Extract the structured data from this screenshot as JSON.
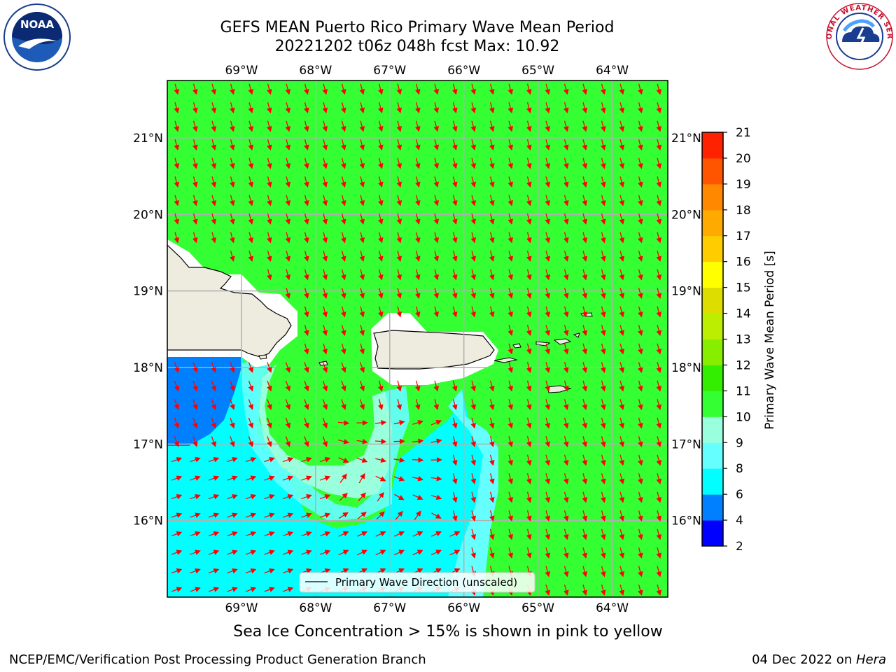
{
  "title": {
    "line1": "GEFS MEAN Puerto Rico Primary Wave Mean Period",
    "line2": "20221202 t06z 048h fcst   Max: 10.92"
  },
  "logos": {
    "left": {
      "text": "NOAA",
      "icon": "noaa-logo-icon"
    },
    "right": {
      "text": "NATIONAL WEATHER SERVICE",
      "icon": "nws-logo-icon"
    }
  },
  "map": {
    "lon_labels": [
      "69°W",
      "68°W",
      "67°W",
      "66°W",
      "65°W",
      "64°W"
    ],
    "lat_labels": [
      "21°N",
      "20°N",
      "19°N",
      "18°N",
      "17°N",
      "16°N"
    ],
    "lon_range": [
      -70.0,
      -63.25
    ],
    "lat_range": [
      15.0,
      21.75
    ],
    "legend_label": "Primary Wave Direction (unscaled)",
    "arrow_color": "#ff0000",
    "fill_colors": {
      "green": "#33ff33",
      "cyan": "#00ffff",
      "light_cyan": "#66ffff",
      "pale": "#99ffdd",
      "blue": "#0080ff",
      "land": "#eeecdf"
    }
  },
  "colorbar": {
    "label": "Primary Wave Mean Period [s]",
    "ticks": [
      "2",
      "4",
      "6",
      "8",
      "9",
      "10",
      "11",
      "12",
      "13",
      "14",
      "15",
      "16",
      "17",
      "18",
      "19",
      "20",
      "21"
    ],
    "colors": [
      "#0000ff",
      "#0080ff",
      "#00ffff",
      "#66ffff",
      "#99ffdd",
      "#33ff33",
      "#33ee00",
      "#88ee00",
      "#bbee00",
      "#dddd00",
      "#ffff00",
      "#ffcc00",
      "#ffaa00",
      "#ff8800",
      "#ff5500",
      "#ff2200"
    ]
  },
  "footer": {
    "ice_note": "Sea Ice Concentration > 15% is shown in pink to yellow",
    "branch": "NCEP/EMC/Verification Post Processing Product Generation Branch",
    "date_prefix": "04 Dec 2022 on ",
    "date_host": "Hera"
  }
}
